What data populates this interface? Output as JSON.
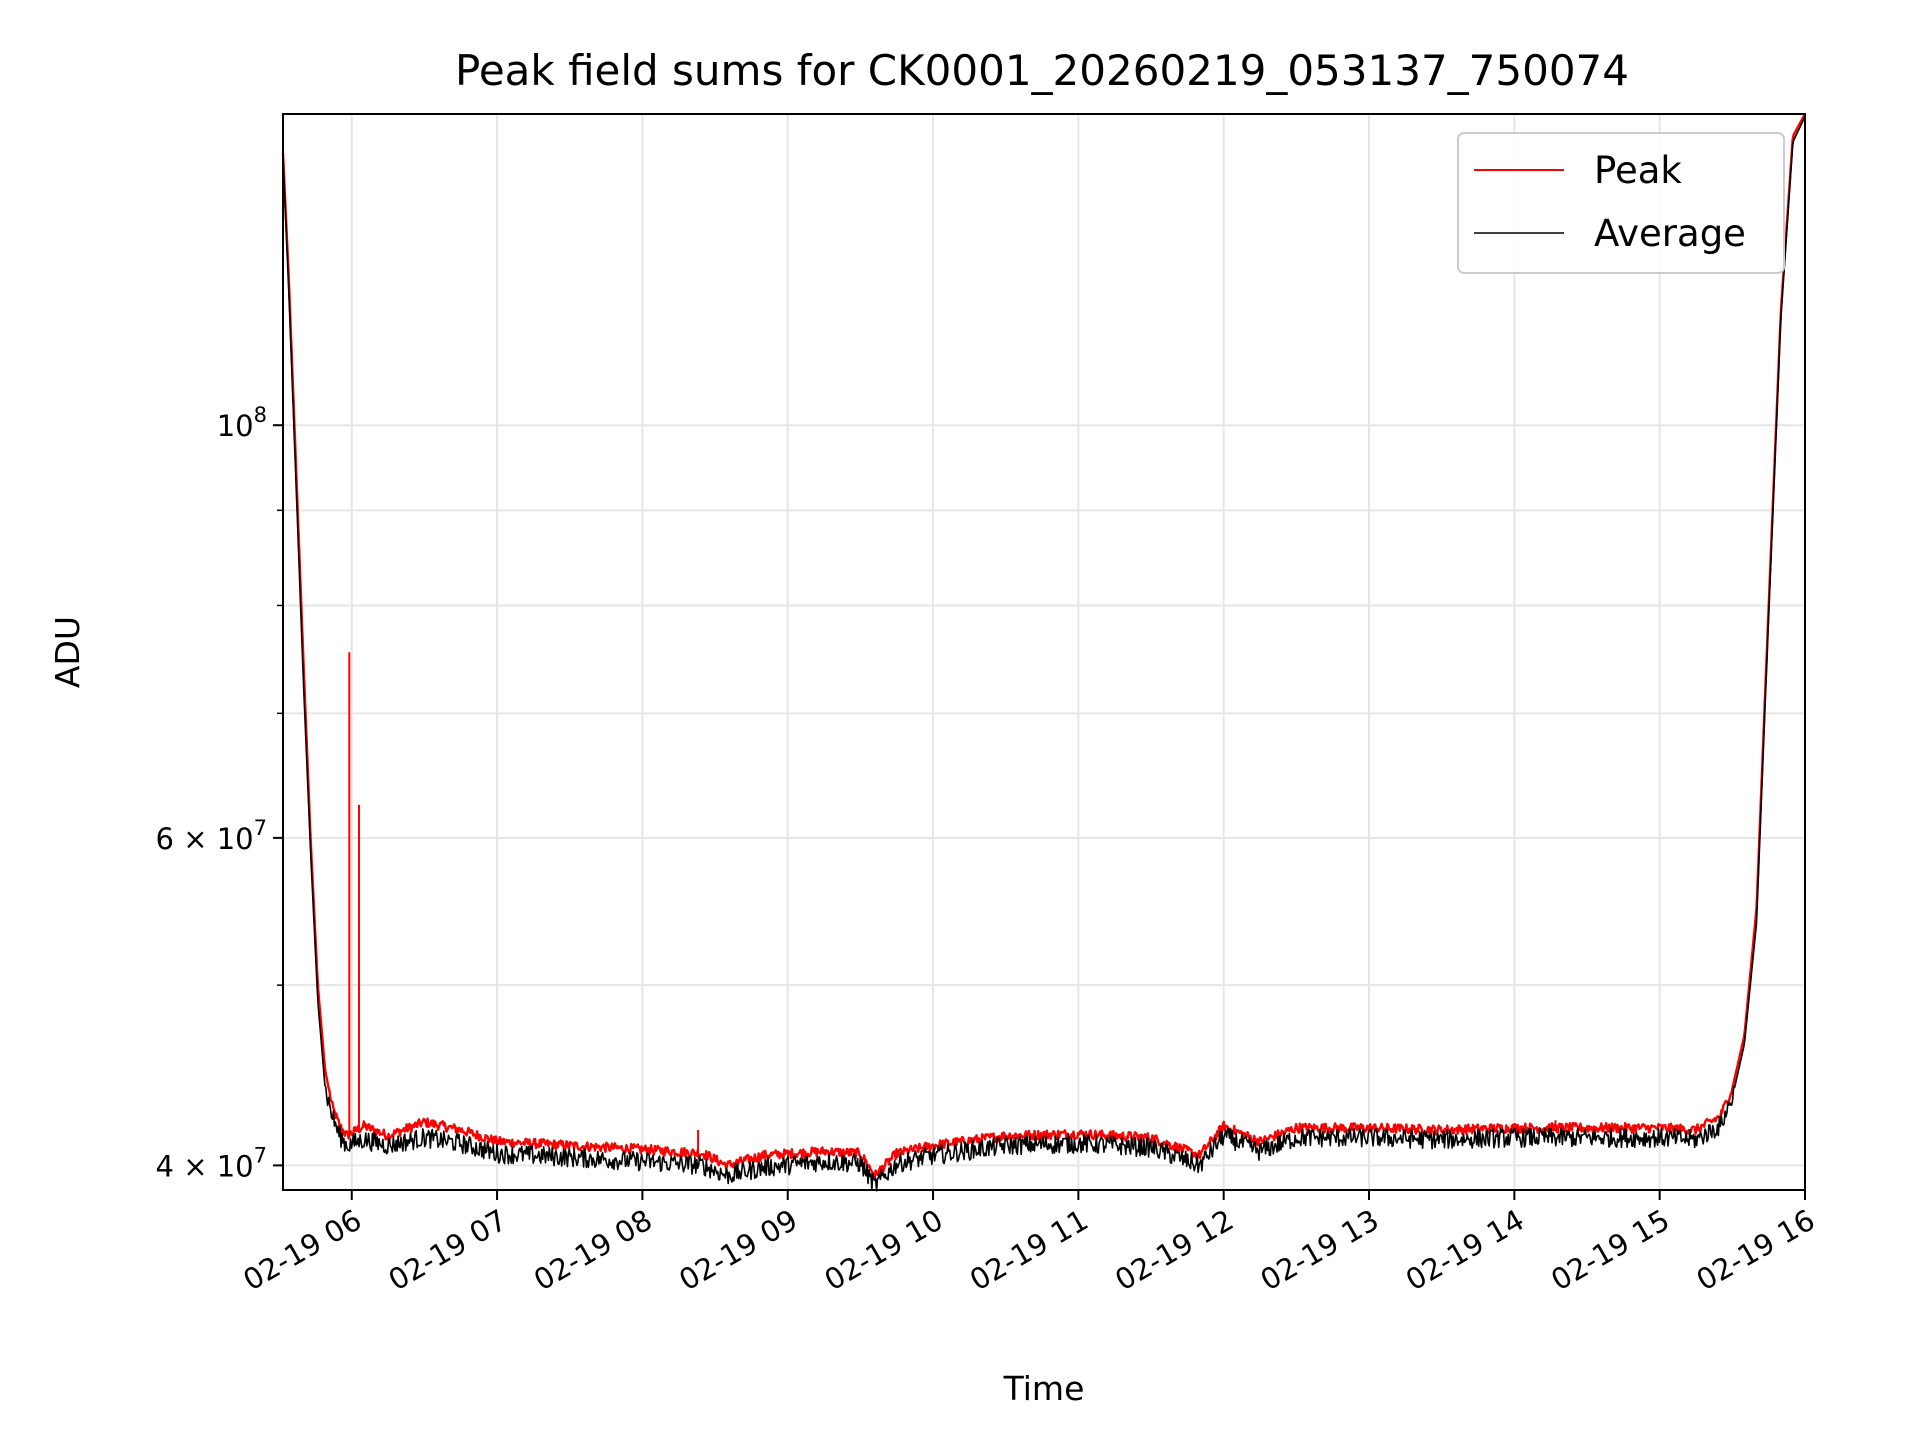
{
  "chart_data": {
    "type": "line",
    "title": "Peak field sums for CK0001_20260219_053137_750074",
    "xlabel": "Time",
    "ylabel": "ADU",
    "y_scale": "log",
    "grid": true,
    "legend_position": "top-right",
    "xlim": [
      "2026-02-19 05:31:37",
      "2026-02-19 16:00"
    ],
    "ylim": [
      38800000,
      147000000
    ],
    "x_ticks": [
      {
        "value": "2026-02-19 06:00",
        "label": "02-19 06"
      },
      {
        "value": "2026-02-19 07:00",
        "label": "02-19 07"
      },
      {
        "value": "2026-02-19 08:00",
        "label": "02-19 08"
      },
      {
        "value": "2026-02-19 09:00",
        "label": "02-19 09"
      },
      {
        "value": "2026-02-19 10:00",
        "label": "02-19 10"
      },
      {
        "value": "2026-02-19 11:00",
        "label": "02-19 11"
      },
      {
        "value": "2026-02-19 12:00",
        "label": "02-19 12"
      },
      {
        "value": "2026-02-19 13:00",
        "label": "02-19 13"
      },
      {
        "value": "2026-02-19 14:00",
        "label": "02-19 14"
      },
      {
        "value": "2026-02-19 15:00",
        "label": "02-19 15"
      },
      {
        "value": "2026-02-19 16:00",
        "label": "02-19 16"
      }
    ],
    "y_major_ticks": [
      {
        "value": 40000000,
        "mantissa": "4",
        "times": "×",
        "base": "10",
        "exponent": "7"
      },
      {
        "value": 60000000,
        "mantissa": "6",
        "times": "×",
        "base": "10",
        "exponent": "7"
      },
      {
        "value": 100000000,
        "mantissa": "",
        "times": "",
        "base": "10",
        "exponent": "8"
      }
    ],
    "y_minor_ticks": [
      50000000,
      70000000,
      80000000,
      90000000
    ],
    "series": [
      {
        "name": "Peak",
        "color": "#ff0000",
        "x": [
          "2026-02-19 05:31:37",
          "2026-02-19 05:34",
          "2026-02-19 05:37",
          "2026-02-19 05:40",
          "2026-02-19 05:43",
          "2026-02-19 05:46",
          "2026-02-19 05:49",
          "2026-02-19 05:52",
          "2026-02-19 05:55",
          "2026-02-19 05:58",
          "2026-02-19 06:05",
          "2026-02-19 06:15",
          "2026-02-19 06:30",
          "2026-02-19 06:45",
          "2026-02-19 07:00",
          "2026-02-19 07:30",
          "2026-02-19 08:00",
          "2026-02-19 08:25",
          "2026-02-19 08:35",
          "2026-02-19 08:50",
          "2026-02-19 09:15",
          "2026-02-19 09:30",
          "2026-02-19 09:36",
          "2026-02-19 09:45",
          "2026-02-19 10:00",
          "2026-02-19 10:30",
          "2026-02-19 11:00",
          "2026-02-19 11:30",
          "2026-02-19 11:50",
          "2026-02-19 12:00",
          "2026-02-19 12:15",
          "2026-02-19 12:30",
          "2026-02-19 13:00",
          "2026-02-19 13:30",
          "2026-02-19 14:00",
          "2026-02-19 14:30",
          "2026-02-19 15:00",
          "2026-02-19 15:15",
          "2026-02-19 15:25",
          "2026-02-19 15:30",
          "2026-02-19 15:35",
          "2026-02-19 15:40",
          "2026-02-19 15:45",
          "2026-02-19 15:50",
          "2026-02-19 15:55",
          "2026-02-19 16:00"
        ],
        "values": [
          140000000,
          120000000,
          95000000,
          75000000,
          60000000,
          50000000,
          45000000,
          43000000,
          42000000,
          41500000,
          42000000,
          41500000,
          42200000,
          41800000,
          41200000,
          41000000,
          40800000,
          40600000,
          40000000,
          40500000,
          40700000,
          40600000,
          39500000,
          40600000,
          41000000,
          41500000,
          41600000,
          41400000,
          40500000,
          42000000,
          41200000,
          41900000,
          41900000,
          41800000,
          41900000,
          41900000,
          41900000,
          41800000,
          42500000,
          44000000,
          47000000,
          55000000,
          80000000,
          115000000,
          143000000,
          147000000
        ],
        "spikes": [
          {
            "x": "2026-02-19 05:59",
            "value": 75500000
          },
          {
            "x": "2026-02-19 06:03",
            "value": 62500000
          },
          {
            "x": "2026-02-19 08:23",
            "value": 41800000
          },
          {
            "x": "2026-02-19 14:17",
            "value": 42300000
          }
        ]
      },
      {
        "name": "Average",
        "color": "#000000",
        "x": [
          "2026-02-19 05:31:37",
          "2026-02-19 05:34",
          "2026-02-19 05:37",
          "2026-02-19 05:40",
          "2026-02-19 05:43",
          "2026-02-19 05:46",
          "2026-02-19 05:49",
          "2026-02-19 05:52",
          "2026-02-19 05:55",
          "2026-02-19 05:58",
          "2026-02-19 06:05",
          "2026-02-19 06:15",
          "2026-02-19 06:30",
          "2026-02-19 06:45",
          "2026-02-19 07:00",
          "2026-02-19 07:30",
          "2026-02-19 08:00",
          "2026-02-19 08:25",
          "2026-02-19 08:35",
          "2026-02-19 08:50",
          "2026-02-19 09:15",
          "2026-02-19 09:30",
          "2026-02-19 09:36",
          "2026-02-19 09:45",
          "2026-02-19 10:00",
          "2026-02-19 10:30",
          "2026-02-19 11:00",
          "2026-02-19 11:30",
          "2026-02-19 11:50",
          "2026-02-19 12:00",
          "2026-02-19 12:15",
          "2026-02-19 12:30",
          "2026-02-19 13:00",
          "2026-02-19 13:30",
          "2026-02-19 14:00",
          "2026-02-19 14:30",
          "2026-02-19 15:00",
          "2026-02-19 15:15",
          "2026-02-19 15:25",
          "2026-02-19 15:30",
          "2026-02-19 15:35",
          "2026-02-19 15:40",
          "2026-02-19 15:45",
          "2026-02-19 15:50",
          "2026-02-19 15:55",
          "2026-02-19 16:00"
        ],
        "values": [
          139000000,
          118000000,
          93000000,
          73000000,
          59000000,
          49000000,
          44000000,
          42500000,
          41500000,
          41000000,
          41300000,
          41000000,
          41400000,
          41100000,
          40600000,
          40400000,
          40200000,
          40000000,
          39500000,
          39900000,
          40200000,
          40100000,
          39000000,
          40100000,
          40500000,
          41000000,
          41100000,
          40900000,
          40000000,
          41500000,
          40700000,
          41400000,
          41400000,
          41300000,
          41400000,
          41400000,
          41400000,
          41300000,
          42000000,
          43500000,
          46500000,
          54000000,
          79000000,
          114000000,
          142000000,
          146500000
        ]
      }
    ]
  }
}
